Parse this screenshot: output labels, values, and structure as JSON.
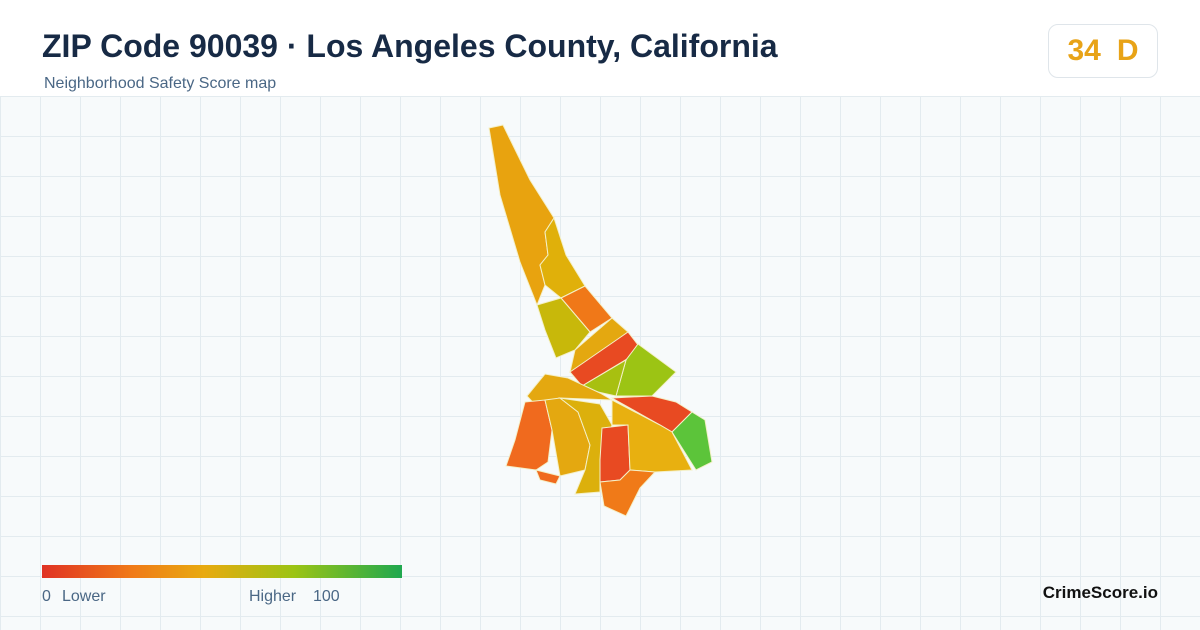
{
  "header": {
    "title": "ZIP Code 90039 · Los Angeles County, California",
    "subtitle": "Neighborhood Safety Score map"
  },
  "score": {
    "value": "34",
    "grade": "D"
  },
  "legend": {
    "min": "0",
    "min_label": "Lower",
    "max_label": "Higher",
    "max": "100"
  },
  "brand": "CrimeScore.io"
}
